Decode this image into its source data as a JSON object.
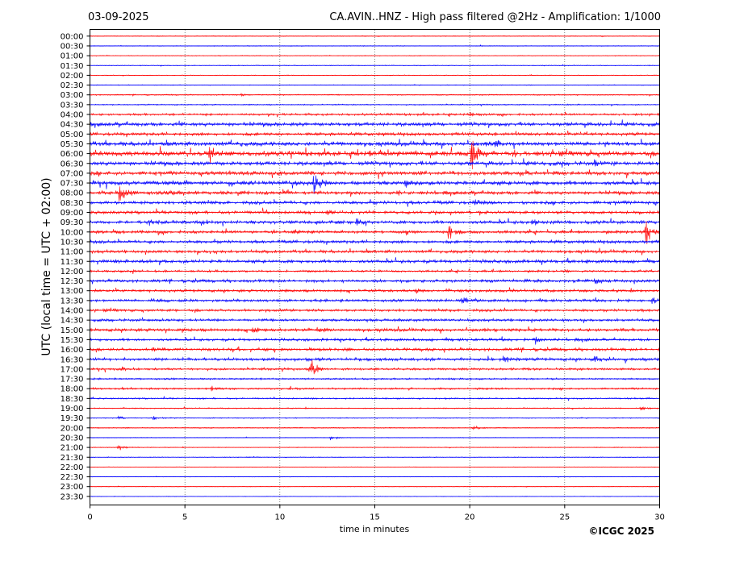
{
  "header": {
    "date": "03-09-2025",
    "title": "CA.AVIN..HNZ - High pass filtered @2Hz - Amplification: 1/1000"
  },
  "copyright": "©ICGC 2025",
  "chart_data": {
    "type": "line",
    "xlabel": "time in minutes",
    "ylabel": "UTC (local time = UTC + 02:00)",
    "xlim": [
      0,
      30
    ],
    "x_ticks": [
      "0",
      "5",
      "10",
      "15",
      "20",
      "25",
      "30"
    ],
    "grid": "vertical dotted lines at every 5 minutes",
    "row_labels": [
      "00:00",
      "00:30",
      "01:00",
      "01:30",
      "02:00",
      "02:30",
      "03:00",
      "03:30",
      "04:00",
      "04:30",
      "05:00",
      "05:30",
      "06:00",
      "06:30",
      "07:00",
      "07:30",
      "08:00",
      "08:30",
      "09:00",
      "09:30",
      "10:00",
      "10:30",
      "11:00",
      "11:30",
      "12:00",
      "12:30",
      "13:00",
      "13:30",
      "14:00",
      "14:30",
      "15:00",
      "15:30",
      "16:00",
      "16:30",
      "17:00",
      "17:30",
      "18:00",
      "18:30",
      "19:00",
      "19:30",
      "20:00",
      "20:30",
      "21:00",
      "21:30",
      "22:00",
      "22:30",
      "23:00",
      "23:30"
    ],
    "colors": {
      "even_rows": "#ff0000",
      "odd_rows": "#0000ff"
    },
    "row_noise": [
      0.4,
      0.4,
      0.4,
      0.4,
      0.4,
      0.4,
      0.6,
      0.6,
      1.2,
      2.0,
      1.6,
      2.2,
      2.6,
      2.2,
      2.0,
      2.2,
      1.8,
      1.8,
      1.6,
      1.8,
      1.6,
      1.6,
      1.6,
      1.8,
      1.2,
      1.6,
      1.4,
      1.4,
      1.4,
      1.4,
      1.6,
      1.4,
      1.6,
      1.6,
      1.2,
      0.9,
      1.0,
      0.8,
      0.6,
      0.5,
      0.5,
      0.4,
      0.4,
      0.4,
      0.3,
      0.3,
      0.3,
      0.3
    ],
    "events": [
      {
        "row": "03:00",
        "minute": 8.0,
        "amplitude": 2
      },
      {
        "row": "04:00",
        "minute": 20.0,
        "amplitude": 3
      },
      {
        "row": "05:30",
        "minute": 21.3,
        "amplitude": 4
      },
      {
        "row": "06:00",
        "minute": 6.3,
        "amplitude": 12
      },
      {
        "row": "06:00",
        "minute": 20.1,
        "amplitude": 28
      },
      {
        "row": "06:30",
        "minute": 26.6,
        "amplitude": 5
      },
      {
        "row": "07:30",
        "minute": 11.8,
        "amplitude": 18
      },
      {
        "row": "07:30",
        "minute": 16.6,
        "amplitude": 4
      },
      {
        "row": "08:00",
        "minute": 1.5,
        "amplitude": 22
      },
      {
        "row": "08:00",
        "minute": 4.2,
        "amplitude": 4
      },
      {
        "row": "08:30",
        "minute": 20.3,
        "amplitude": 4
      },
      {
        "row": "09:00",
        "minute": 12.5,
        "amplitude": 3
      },
      {
        "row": "09:30",
        "minute": 3.1,
        "amplitude": 5
      },
      {
        "row": "09:30",
        "minute": 6.0,
        "amplitude": 4
      },
      {
        "row": "09:30",
        "minute": 14.0,
        "amplitude": 8
      },
      {
        "row": "09:30",
        "minute": 23.3,
        "amplitude": 4
      },
      {
        "row": "10:00",
        "minute": 10.7,
        "amplitude": 3
      },
      {
        "row": "10:00",
        "minute": 16.7,
        "amplitude": 4
      },
      {
        "row": "10:00",
        "minute": 18.9,
        "amplitude": 20
      },
      {
        "row": "10:00",
        "minute": 29.3,
        "amplitude": 22
      },
      {
        "row": "12:30",
        "minute": 26.6,
        "amplitude": 4
      },
      {
        "row": "13:00",
        "minute": 17.2,
        "amplitude": 4
      },
      {
        "row": "13:30",
        "minute": 3.1,
        "amplitude": 5
      },
      {
        "row": "13:30",
        "minute": 19.6,
        "amplitude": 5
      },
      {
        "row": "13:30",
        "minute": 29.6,
        "amplitude": 5
      },
      {
        "row": "15:00",
        "minute": 8.6,
        "amplitude": 6
      },
      {
        "row": "15:00",
        "minute": 12.0,
        "amplitude": 4
      },
      {
        "row": "15:30",
        "minute": 23.5,
        "amplitude": 5
      },
      {
        "row": "16:00",
        "minute": 3.3,
        "amplitude": 4
      },
      {
        "row": "16:30",
        "minute": 21.8,
        "amplitude": 5
      },
      {
        "row": "16:30",
        "minute": 26.6,
        "amplitude": 5
      },
      {
        "row": "17:00",
        "minute": 1.7,
        "amplitude": 4
      },
      {
        "row": "17:00",
        "minute": 11.6,
        "amplitude": 18
      },
      {
        "row": "18:00",
        "minute": 6.4,
        "amplitude": 3
      },
      {
        "row": "18:00",
        "minute": 10.6,
        "amplitude": 3
      },
      {
        "row": "19:00",
        "minute": 29.0,
        "amplitude": 3
      },
      {
        "row": "19:30",
        "minute": 1.5,
        "amplitude": 3
      },
      {
        "row": "19:30",
        "minute": 3.3,
        "amplitude": 3
      },
      {
        "row": "20:00",
        "minute": 20.2,
        "amplitude": 5
      },
      {
        "row": "20:30",
        "minute": 12.7,
        "amplitude": 4
      },
      {
        "row": "21:00",
        "minute": 1.5,
        "amplitude": 6
      }
    ]
  }
}
